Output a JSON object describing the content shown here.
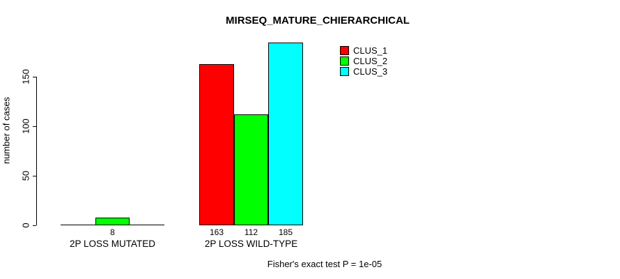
{
  "title": "MIRSEQ_MATURE_CHIERARCHICAL",
  "footer": "Fisher's exact test P = 1e-05",
  "chart_data": {
    "type": "bar",
    "title": "MIRSEQ_MATURE_CHIERARCHICAL",
    "xlabel": "",
    "ylabel": "number of cases",
    "categories": [
      "2P LOSS MUTATED",
      "2P LOSS WILD-TYPE"
    ],
    "series": [
      {
        "name": "CLUS_1",
        "color": "#ff0000",
        "values": [
          0,
          163
        ]
      },
      {
        "name": "CLUS_2",
        "color": "#00ff00",
        "values": [
          8,
          112
        ]
      },
      {
        "name": "CLUS_3",
        "color": "#00ffff",
        "values": [
          0,
          185
        ]
      }
    ],
    "bar_value_labels": {
      "2P LOSS MUTATED": [
        "",
        "8",
        ""
      ],
      "2P LOSS WILD-TYPE": [
        "163",
        "112",
        "185"
      ]
    },
    "yticks": [
      0,
      50,
      100,
      150
    ],
    "ylim": [
      0,
      185
    ],
    "grid": false,
    "legend_position": "top-right",
    "annotation": "Fisher's exact test P = 1e-05"
  }
}
